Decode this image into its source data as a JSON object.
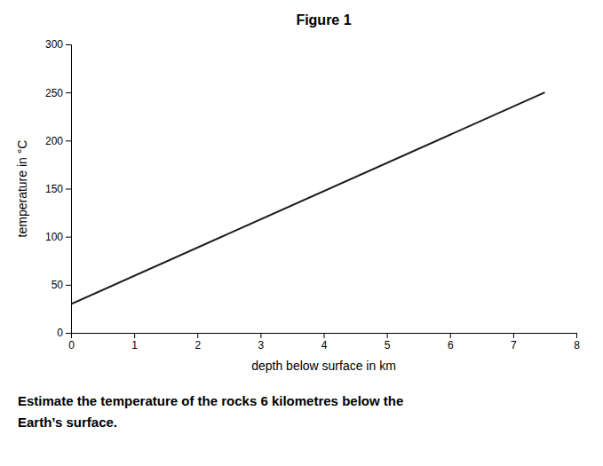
{
  "chart_data": {
    "type": "line",
    "title": "Figure 1",
    "xlabel": "depth below surface in km",
    "ylabel": "temperature in °C",
    "x": [
      0,
      7.5
    ],
    "values": [
      30,
      250
    ],
    "color": "#1a1a1a",
    "xlim": [
      0,
      8
    ],
    "ylim": [
      0,
      300
    ],
    "xticks": [
      0,
      1,
      2,
      3,
      4,
      5,
      6,
      7,
      8
    ],
    "yticks": [
      0,
      50,
      100,
      150,
      200,
      250,
      300
    ],
    "annotations": [
      "Estimate the temperature of the rocks 6 kilometres below the",
      "Earth’s surface."
    ]
  }
}
